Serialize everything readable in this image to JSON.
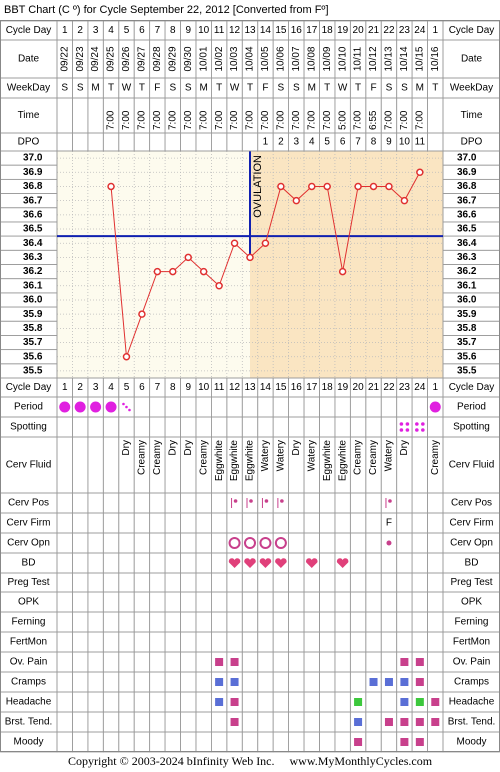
{
  "title": "BBT Chart (C º) for Cycle September 22, 2012  [Converted from Fº]",
  "footer": "Copyright © 2003-2024 bInfinity Web Inc.     www.MyMonthlyCycles.com",
  "row_labels": {
    "cycle_day": "Cycle Day",
    "date": "Date",
    "weekday": "WeekDay",
    "time": "Time",
    "dpo": "DPO",
    "period": "Period",
    "spotting": "Spotting",
    "cerv_fluid": "Cerv Fluid",
    "cerv_pos": "Cerv Pos",
    "cerv_firm": "Cerv Firm",
    "cerv_opn": "Cerv Opn",
    "bd": "BD",
    "preg_test": "Preg Test",
    "opk": "OPK",
    "ferning": "Ferning",
    "fertmon": "FertMon",
    "ov_pain": "Ov. Pain",
    "cramps": "Cramps",
    "headache": "Headache",
    "brst_tend": "Brst. Tend.",
    "moody": "Moody"
  },
  "table": {
    "dates": [
      "09/22",
      "09/23",
      "09/24",
      "09/25",
      "09/26",
      "09/27",
      "09/28",
      "09/29",
      "09/30",
      "10/01",
      "10/02",
      "10/03",
      "10/04",
      "10/05",
      "10/06",
      "10/07",
      "10/08",
      "10/09",
      "10/10",
      "10/11",
      "10/12",
      "10/13",
      "10/14",
      "10/15",
      "10/16"
    ],
    "weekdays": [
      "S",
      "S",
      "M",
      "T",
      "W",
      "T",
      "F",
      "S",
      "S",
      "M",
      "T",
      "W",
      "T",
      "F",
      "S",
      "S",
      "M",
      "T",
      "W",
      "T",
      "F",
      "S",
      "S",
      "M",
      "T"
    ],
    "times": [
      null,
      null,
      null,
      "7:00",
      "7:00",
      "7:00",
      "7:00",
      "7:00",
      "7:00",
      "7:00",
      "7:00",
      "7:00",
      "7:00",
      "7:00",
      "7:00",
      "7:00",
      "7:00",
      "7:00",
      "5:00",
      "7:00",
      "6:55",
      "7:00",
      "7:00",
      "7:00",
      null
    ],
    "dpo": [
      null,
      null,
      null,
      null,
      null,
      null,
      null,
      null,
      null,
      null,
      null,
      null,
      null,
      1,
      2,
      3,
      4,
      5,
      6,
      7,
      8,
      9,
      10,
      11,
      null
    ],
    "cerv_fluid": [
      null,
      null,
      null,
      null,
      "Dry",
      "Creamy",
      "Creamy",
      "Dry",
      "Dry",
      "Creamy",
      "Eggwhite",
      "Eggwhite",
      "Eggwhite",
      "Watery",
      "Watery",
      "Dry",
      "Watery",
      "Eggwhite",
      "Eggwhite",
      "Creamy",
      "Creamy",
      "Watery",
      "Dry",
      null,
      "Creamy"
    ],
    "cerv_firm": [
      null,
      null,
      null,
      null,
      null,
      null,
      null,
      null,
      null,
      null,
      null,
      null,
      null,
      null,
      null,
      null,
      null,
      null,
      null,
      null,
      null,
      "F",
      null,
      null,
      null
    ]
  },
  "chart_data": {
    "type": "line",
    "categories": [
      1,
      2,
      3,
      4,
      5,
      6,
      7,
      8,
      9,
      10,
      11,
      12,
      13,
      14,
      15,
      16,
      17,
      18,
      19,
      20,
      21,
      22,
      23,
      24,
      1
    ],
    "values": [
      null,
      null,
      null,
      36.8,
      35.6,
      35.9,
      36.2,
      36.2,
      36.3,
      36.2,
      36.1,
      36.4,
      36.3,
      36.4,
      36.8,
      36.7,
      36.8,
      36.8,
      36.2,
      36.8,
      36.8,
      36.8,
      36.7,
      36.9,
      null
    ],
    "color": "#e03030",
    "ylim": [
      35.45,
      37.05
    ],
    "yticks": [
      {
        "value": 37,
        "label": "37.0"
      },
      36.9,
      36.8,
      36.7,
      36.6,
      36.5,
      36.4,
      36.3,
      36.2,
      36.1,
      {
        "value": 36,
        "label": "36.0"
      },
      35.9,
      35.8,
      35.7,
      35.6,
      35.5
    ],
    "grid": true,
    "coverline": 36.45,
    "coverline_color": "#1020b0",
    "ovulation_day": 13,
    "ovulation_label": "OVULATION",
    "shade_color": "#fae5c2"
  }
}
